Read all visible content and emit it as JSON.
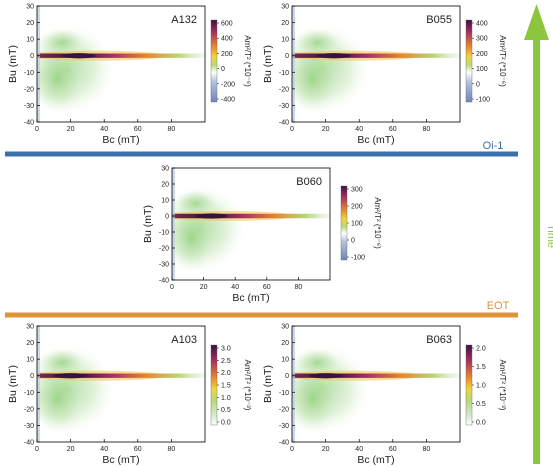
{
  "figure": {
    "event_lines": [
      {
        "label": "Oi-1",
        "color": "#3a6fb0"
      },
      {
        "label": "EOT",
        "color": "#e0923a"
      }
    ],
    "time_arrow": {
      "label": "Time",
      "color": "#8cc63f"
    }
  },
  "chart_data": [
    {
      "type": "heatmap",
      "title": "A132",
      "xlabel": "Bc (mT)",
      "ylabel": "Bu (mT)",
      "xlim": [
        0,
        100
      ],
      "ylim": [
        -40,
        30
      ],
      "xticks": [
        "0",
        "20",
        "40",
        "60",
        "80"
      ],
      "yticks": [
        "30",
        "20",
        "10",
        "0",
        "-10",
        "-20",
        "-30",
        "-40"
      ],
      "colorbar": {
        "label": "Am²/T² (*10⁻⁶)",
        "ticks": [
          "600",
          "400",
          "200",
          "0",
          "-200",
          "-400"
        ],
        "range": [
          -400,
          700
        ]
      },
      "peak": {
        "x": 25,
        "y": 0
      }
    },
    {
      "type": "heatmap",
      "title": "B055",
      "xlabel": "Bc (mT)",
      "ylabel": "Bu (mT)",
      "xlim": [
        0,
        100
      ],
      "ylim": [
        -40,
        30
      ],
      "xticks": [
        "0",
        "20",
        "40",
        "60",
        "80"
      ],
      "yticks": [
        "30",
        "20",
        "10",
        "0",
        "-10",
        "-20",
        "-30",
        "-40"
      ],
      "colorbar": {
        "label": "Am²/T² (*10⁻⁶)",
        "ticks": [
          "400",
          "300",
          "200",
          "100",
          "0",
          "-100"
        ],
        "range": [
          -150,
          450
        ]
      },
      "peak": {
        "x": 25,
        "y": 0
      }
    },
    {
      "type": "heatmap",
      "title": "B060",
      "xlabel": "Bc (mT)",
      "ylabel": "Bu (mT)",
      "xlim": [
        0,
        100
      ],
      "ylim": [
        -40,
        30
      ],
      "xticks": [
        "0",
        "20",
        "40",
        "60",
        "80"
      ],
      "yticks": [
        "30",
        "20",
        "10",
        "0",
        "-10",
        "-20",
        "-30",
        "-40"
      ],
      "colorbar": {
        "label": "Am²/T² (*10⁻⁶)",
        "ticks": [
          "300",
          "200",
          "100",
          "0",
          "-100"
        ],
        "range": [
          -130,
          370
        ]
      },
      "peak": {
        "x": 25,
        "y": 0
      }
    },
    {
      "type": "heatmap",
      "title": "A103",
      "xlabel": "Bc (mT)",
      "ylabel": "Bu (mT)",
      "xlim": [
        0,
        100
      ],
      "ylim": [
        -40,
        30
      ],
      "xticks": [
        "0",
        "20",
        "40",
        "60",
        "80"
      ],
      "yticks": [
        "30",
        "20",
        "10",
        "0",
        "-10",
        "-20",
        "-30",
        "-40"
      ],
      "colorbar": {
        "label": "Am²/T² (*10⁻³)",
        "ticks": [
          "3.0",
          "2.5",
          "2.0",
          "1.5",
          "1.0",
          "0.5",
          "0.0"
        ],
        "range": [
          -0.3,
          3.3
        ]
      },
      "peak": {
        "x": 20,
        "y": 0
      }
    },
    {
      "type": "heatmap",
      "title": "B063",
      "xlabel": "Bc (mT)",
      "ylabel": "Bu (mT)",
      "xlim": [
        0,
        100
      ],
      "ylim": [
        -40,
        30
      ],
      "xticks": [
        "0",
        "20",
        "40",
        "60",
        "80"
      ],
      "yticks": [
        "30",
        "20",
        "10",
        "0",
        "-10",
        "-20",
        "-30",
        "-40"
      ],
      "colorbar": {
        "label": "Am²/T² (*10⁻³)",
        "ticks": [
          "2.0",
          "1.5",
          "1.0",
          "0.5",
          "0.0"
        ],
        "range": [
          -0.3,
          2.3
        ]
      },
      "peak": {
        "x": 20,
        "y": 0
      }
    }
  ]
}
